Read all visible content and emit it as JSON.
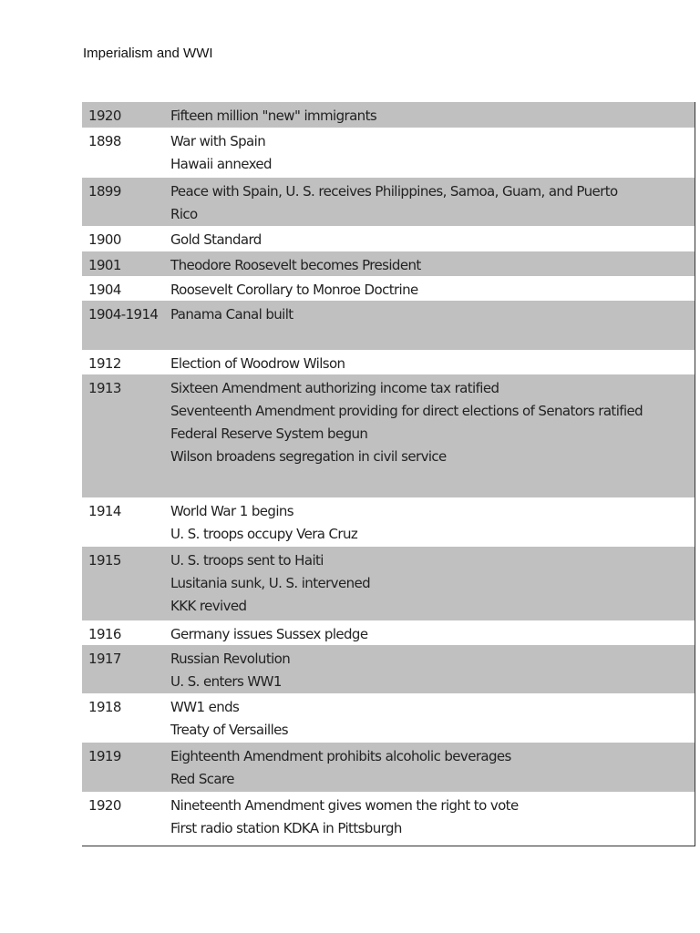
{
  "title": "Imperialism and WWI",
  "shade_color": "#c0c0c0",
  "rows": [
    {
      "year": "1920",
      "events": [
        "Fifteen million \"new\" immigrants"
      ],
      "shaded": true
    },
    {
      "year": "1898",
      "events": [
        "War with Spain",
        "Hawaii annexed"
      ],
      "shaded": false
    },
    {
      "year": "1899",
      "events": [
        "Peace with Spain, U. S. receives Philippines, Samoa, Guam, and Puerto",
        "Rico"
      ],
      "shaded": true
    },
    {
      "year": "1900",
      "events": [
        "Gold Standard"
      ],
      "shaded": false
    },
    {
      "year": "1901",
      "events": [
        "Theodore Roosevelt becomes President"
      ],
      "shaded": true
    },
    {
      "year": "1904",
      "events": [
        "Roosevelt Corollary to Monroe Doctrine"
      ],
      "shaded": false
    },
    {
      "year": "1904-1914",
      "events": [
        "Panama Canal built"
      ],
      "shaded": true
    },
    {
      "year": "1912",
      "events": [
        "Election of Woodrow Wilson"
      ],
      "shaded": false
    },
    {
      "year": "1913",
      "events": [
        "Sixteen Amendment authorizing income tax ratified",
        "Seventeenth Amendment providing for direct elections of Senators ratified",
        "Federal Reserve System begun",
        "Wilson broadens segregation in civil service"
      ],
      "shaded": true
    },
    {
      "year": "1914",
      "events": [
        "World War 1 begins",
        "U. S. troops occupy Vera Cruz"
      ],
      "shaded": false
    },
    {
      "year": "1915",
      "events": [
        "U. S. troops sent to Haiti",
        "Lusitania sunk, U. S. intervened",
        "KKK revived"
      ],
      "shaded": true
    },
    {
      "year": "1916",
      "events": [
        "Germany issues Sussex pledge"
      ],
      "shaded": false
    },
    {
      "year": "1917",
      "events": [
        "Russian Revolution",
        "U. S. enters WW1"
      ],
      "shaded": true
    },
    {
      "year": "1918",
      "events": [
        "WW1 ends",
        "Treaty of Versailles"
      ],
      "shaded": false
    },
    {
      "year": "1919",
      "events": [
        "Eighteenth Amendment prohibits alcoholic beverages",
        "Red Scare"
      ],
      "shaded": true
    },
    {
      "year": "1920",
      "events": [
        "Nineteenth Amendment gives women the right to vote",
        "First radio station KDKA in Pittsburgh"
      ],
      "shaded": false
    }
  ]
}
